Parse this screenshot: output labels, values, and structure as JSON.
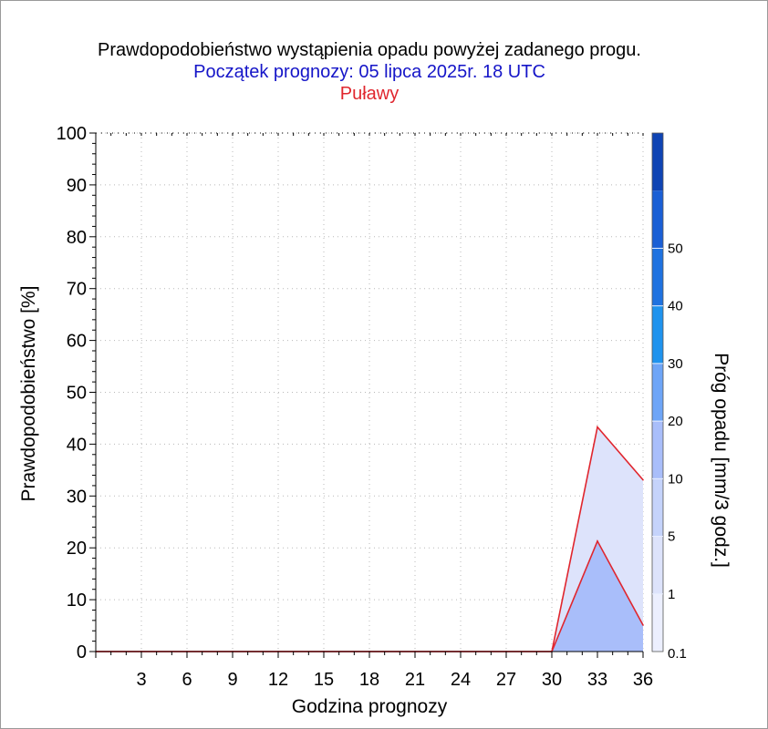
{
  "title": "Prawdopodobieństwo wystąpienia opadu powyżej zadanego progu.",
  "subtitle": "Początek prognozy: 05 lipca 2025r. 18 UTC",
  "location": "Puławy",
  "colors": {
    "title": "#000000",
    "subtitle": "#1515c8",
    "location": "#e0262e",
    "line": "#e0262e",
    "grid": "#b8b8b8"
  },
  "chart_data": {
    "type": "area",
    "xlabel": "Godzina prognozy",
    "ylabel": "Prawdopodobieństwo [%]",
    "xlim": [
      0,
      36
    ],
    "ylim": [
      0,
      100
    ],
    "x_ticks": [
      3,
      6,
      9,
      12,
      15,
      18,
      21,
      24,
      27,
      30,
      33,
      36
    ],
    "y_ticks": [
      0,
      10,
      20,
      30,
      40,
      50,
      60,
      70,
      80,
      90,
      100
    ],
    "x": [
      0,
      3,
      6,
      9,
      12,
      15,
      18,
      21,
      24,
      27,
      30,
      33,
      36
    ],
    "series": [
      {
        "name": "0.1",
        "color": "#dde3fb",
        "values": [
          0,
          0,
          0,
          0,
          0,
          0,
          0,
          0,
          0,
          0,
          0,
          43.3,
          33.1
        ]
      },
      {
        "name": "1",
        "color": "#a9befa",
        "values": [
          0,
          0,
          0,
          0,
          0,
          0,
          0,
          0,
          0,
          0,
          0,
          21.3,
          5.1
        ]
      }
    ],
    "colorbar": {
      "label": "Próg opadu [mm/3 godz.]",
      "levels": [
        "0.1",
        "1",
        "5",
        "10",
        "20",
        "30",
        "40",
        "50"
      ],
      "colors": [
        "#eceffe",
        "#dde3fb",
        "#c5d3fb",
        "#a9befa",
        "#6ea5f7",
        "#1f93ee",
        "#1f72e0",
        "#1a5fd5",
        "#0f44b4"
      ]
    },
    "grid": true
  }
}
